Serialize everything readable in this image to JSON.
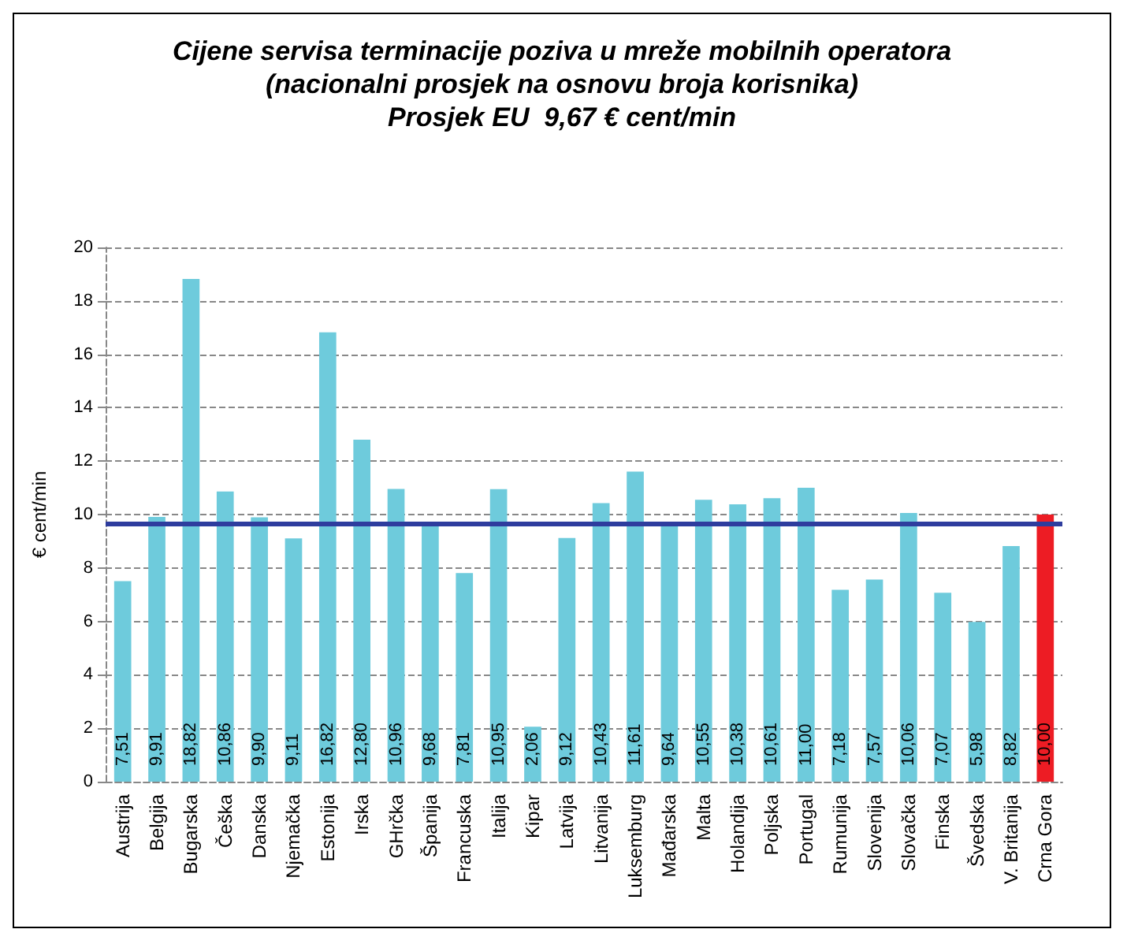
{
  "chart_data": {
    "type": "bar",
    "title": "Cijene servisa terminacije poziva u mreže mobilnih operatora\n(nacionalni prosjek na osnovu broja korisnika)\nProsjek EU  9,67 € cent/min",
    "ylabel": "€ cent/min",
    "categories": [
      "Austrija",
      "Belgija",
      "Bugarska",
      "Češka",
      "Danska",
      "Njemačka",
      "Estonija",
      "Irska",
      "GHrčka",
      "Španija",
      "Francuska",
      "Italija",
      "Kipar",
      "Latvija",
      "Litvanija",
      "Luksemburg",
      "Mađarska",
      "Malta",
      "Holandija",
      "Poljska",
      "Portugal",
      "Rumunija",
      "Slovenija",
      "Slovačka",
      "Finska",
      "Švedska",
      "V. Britanija",
      "Crna Gora"
    ],
    "values": [
      7.51,
      9.91,
      18.82,
      10.86,
      9.9,
      9.11,
      16.82,
      12.8,
      10.96,
      9.68,
      7.81,
      10.95,
      2.06,
      9.12,
      10.43,
      11.61,
      9.64,
      10.55,
      10.38,
      10.61,
      11.0,
      7.18,
      7.57,
      10.06,
      7.07,
      5.98,
      8.82,
      10.0
    ],
    "value_labels": [
      "7,51",
      "9,91",
      "18,82",
      "10,86",
      "9,90",
      "9,11",
      "16,82",
      "12,80",
      "10,96",
      "9,68",
      "7,81",
      "10,95",
      "2,06",
      "9,12",
      "10,43",
      "11,61",
      "9,64",
      "10,55",
      "10,38",
      "10,61",
      "11,00",
      "7,18",
      "7,57",
      "10,06",
      "7,07",
      "5,98",
      "8,82",
      "10,00"
    ],
    "colors": [
      "#6ecbdc",
      "#6ecbdc",
      "#6ecbdc",
      "#6ecbdc",
      "#6ecbdc",
      "#6ecbdc",
      "#6ecbdc",
      "#6ecbdc",
      "#6ecbdc",
      "#6ecbdc",
      "#6ecbdc",
      "#6ecbdc",
      "#6ecbdc",
      "#6ecbdc",
      "#6ecbdc",
      "#6ecbdc",
      "#6ecbdc",
      "#6ecbdc",
      "#6ecbdc",
      "#6ecbdc",
      "#6ecbdc",
      "#6ecbdc",
      "#6ecbdc",
      "#6ecbdc",
      "#6ecbdc",
      "#6ecbdc",
      "#6ecbdc",
      "#ed1c24"
    ],
    "ylim": [
      0,
      20
    ],
    "yticks": [
      0,
      2,
      4,
      6,
      8,
      10,
      12,
      14,
      16,
      18,
      20
    ],
    "grid": "y",
    "ref_lines": [
      {
        "axis": "y",
        "value": 9.67,
        "color": "#2e3d9e"
      }
    ]
  }
}
